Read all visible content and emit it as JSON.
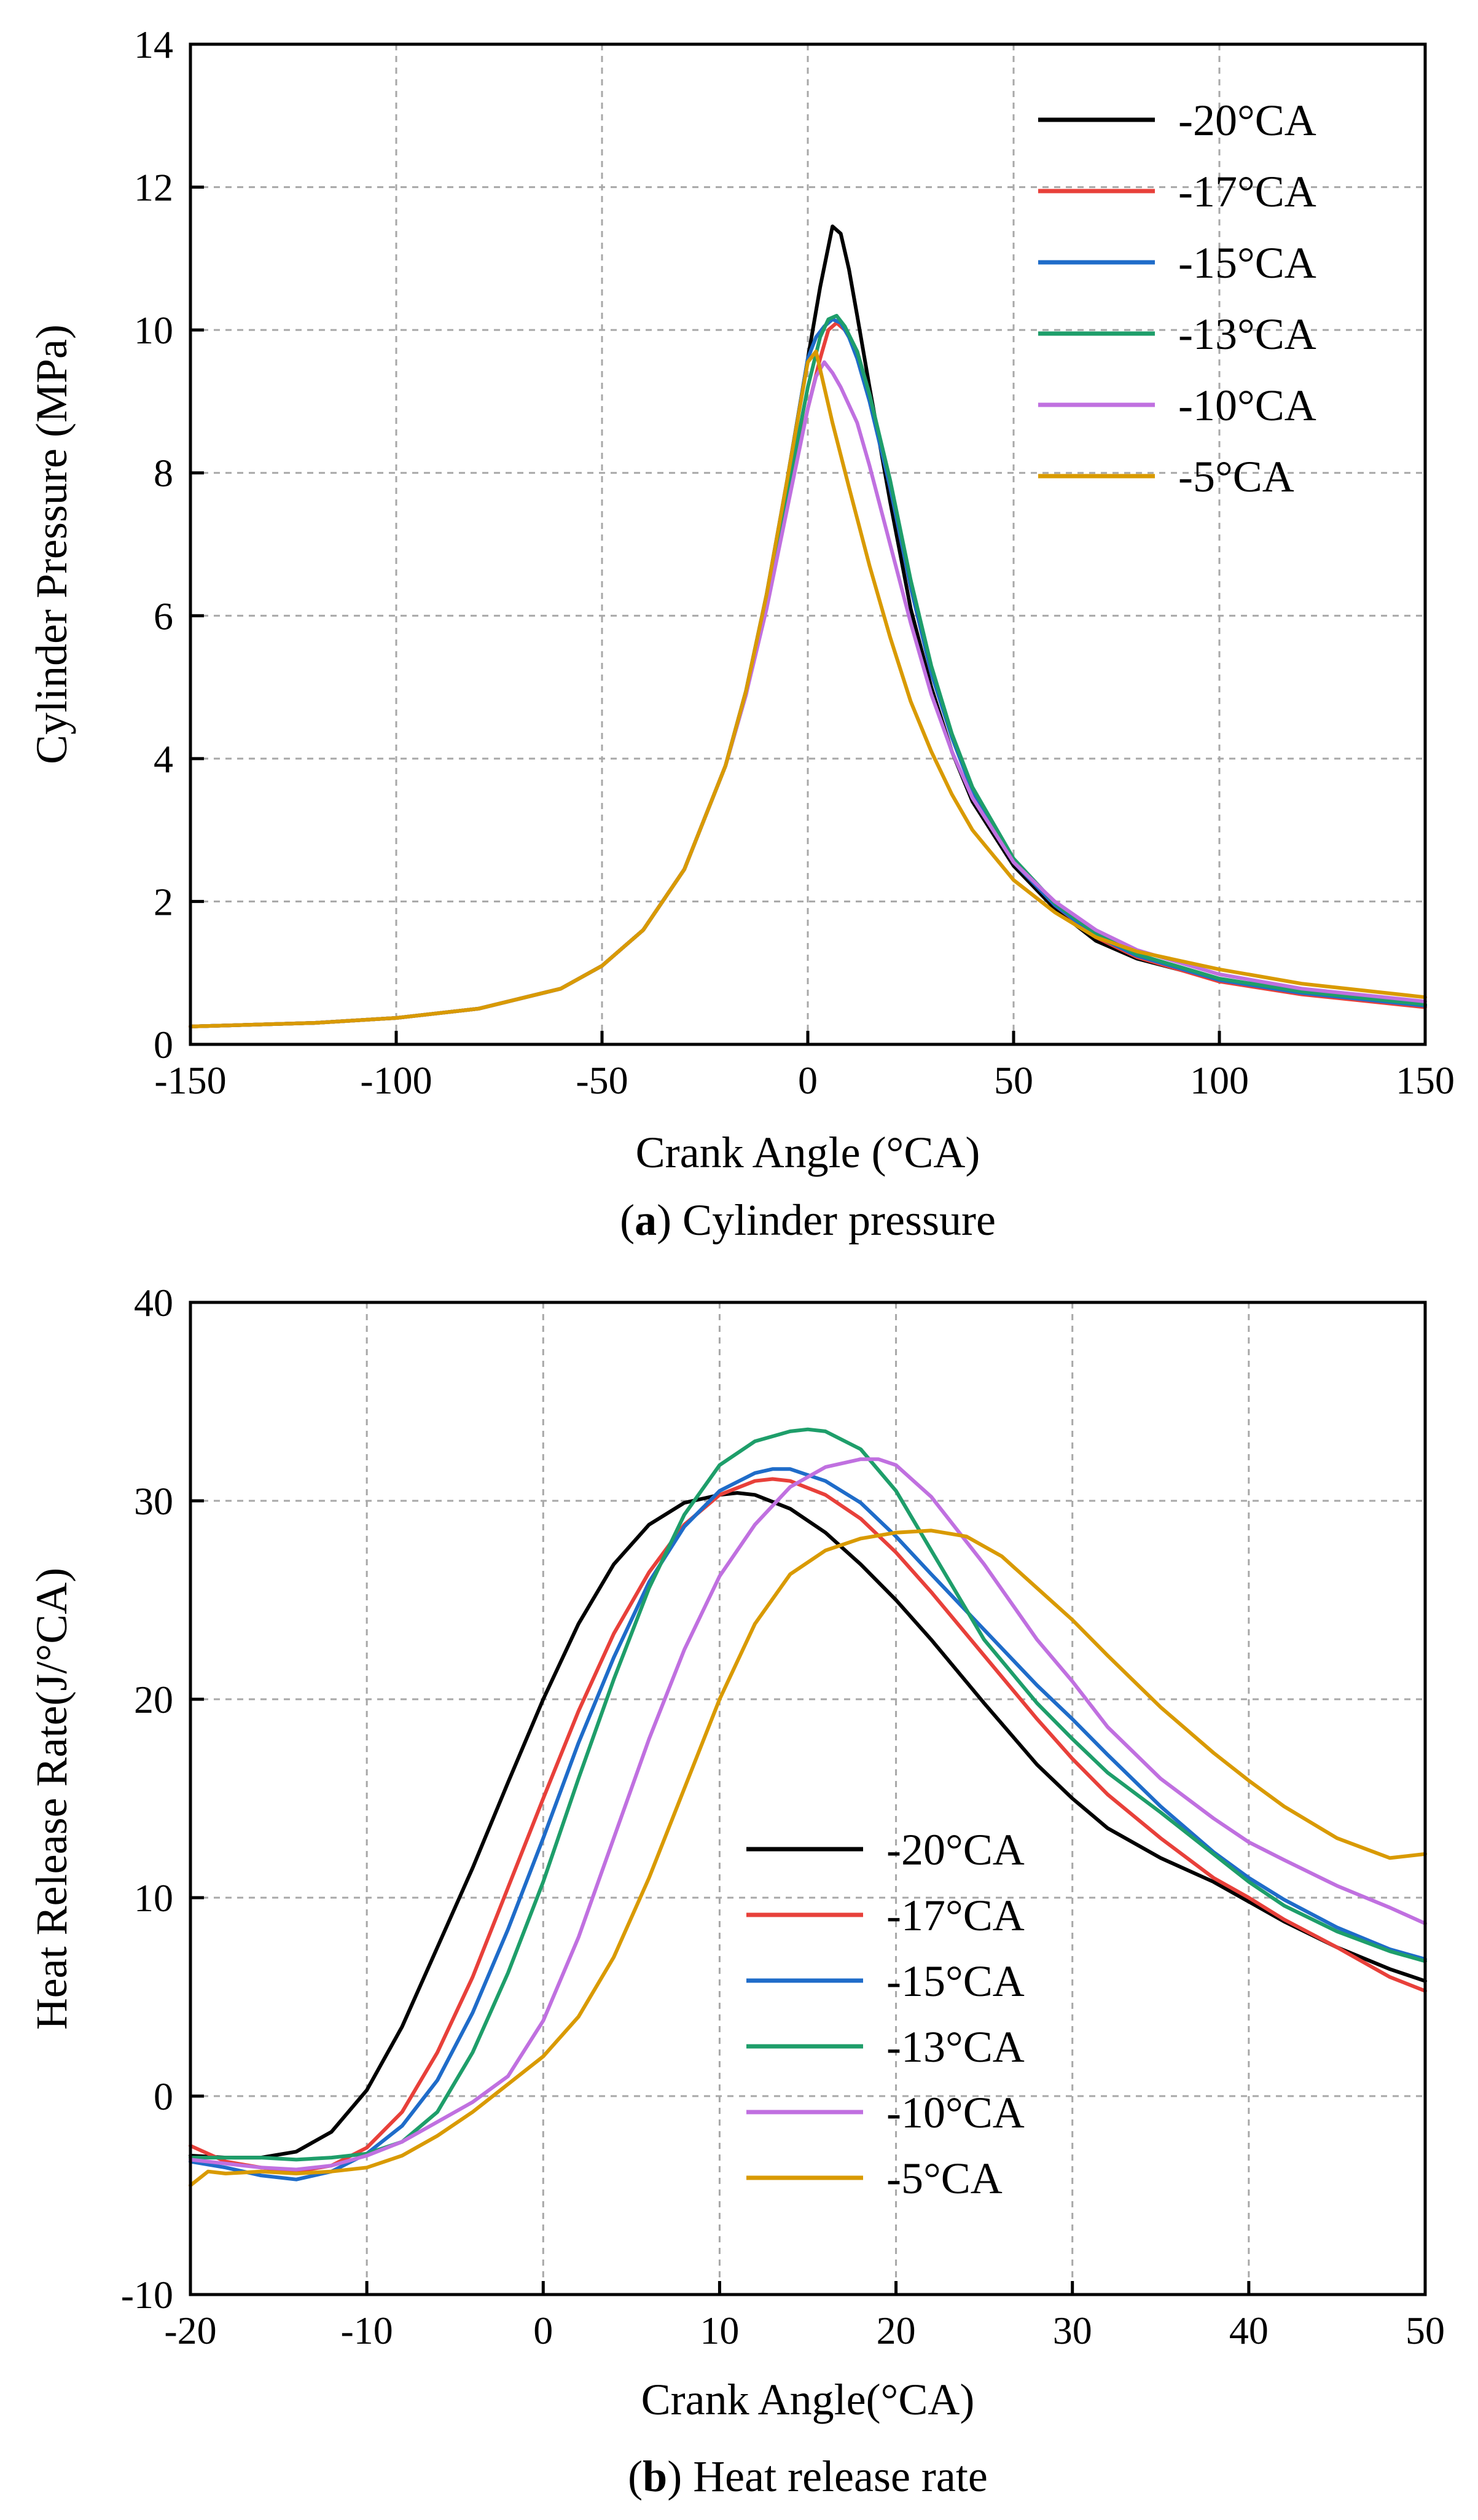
{
  "chart_data": [
    {
      "type": "line",
      "title": "",
      "xlabel": "Crank Angle (°CA)",
      "ylabel": "Cylinder Pressure (MPa)",
      "caption": {
        "letter": "a",
        "text": "Cylinder pressure"
      },
      "xlim": [
        -150,
        150
      ],
      "ylim": [
        0,
        14
      ],
      "xticks": [
        -150,
        -100,
        -50,
        0,
        50,
        100,
        150
      ],
      "yticks": [
        0,
        2,
        4,
        6,
        8,
        10,
        12,
        14
      ],
      "grid": true,
      "legend_position": "top-right",
      "series": [
        {
          "name": "-20°CA",
          "color": "#000000",
          "x": [
            -150,
            -120,
            -100,
            -80,
            -60,
            -50,
            -40,
            -30,
            -20,
            -15,
            -10,
            -5,
            0,
            3,
            6,
            8,
            10,
            12,
            15,
            20,
            25,
            30,
            35,
            40,
            50,
            60,
            70,
            80,
            100,
            120,
            150
          ],
          "y": [
            0.25,
            0.3,
            0.37,
            0.5,
            0.78,
            1.1,
            1.6,
            2.45,
            3.9,
            4.95,
            6.3,
            7.9,
            9.6,
            10.6,
            11.45,
            11.35,
            10.85,
            10.2,
            9.2,
            7.6,
            6.1,
            5.0,
            4.1,
            3.4,
            2.5,
            1.9,
            1.45,
            1.2,
            0.9,
            0.72,
            0.55
          ]
        },
        {
          "name": "-17°CA",
          "color": "#e8403a",
          "x": [
            -150,
            -120,
            -100,
            -80,
            -60,
            -50,
            -40,
            -30,
            -20,
            -15,
            -10,
            -5,
            0,
            3,
            5,
            7,
            9,
            12,
            15,
            20,
            25,
            30,
            35,
            40,
            50,
            60,
            70,
            80,
            100,
            120,
            150
          ],
          "y": [
            0.25,
            0.3,
            0.37,
            0.5,
            0.78,
            1.1,
            1.6,
            2.45,
            3.9,
            4.9,
            6.2,
            7.6,
            8.9,
            9.6,
            10.0,
            10.1,
            10.0,
            9.7,
            9.1,
            7.8,
            6.4,
            5.2,
            4.3,
            3.55,
            2.55,
            1.95,
            1.5,
            1.22,
            0.88,
            0.7,
            0.52
          ]
        },
        {
          "name": "-15°CA",
          "color": "#1f6cc9",
          "x": [
            -150,
            -120,
            -100,
            -80,
            -60,
            -50,
            -40,
            -30,
            -20,
            -15,
            -10,
            -5,
            0,
            2,
            4,
            6,
            8,
            10,
            12,
            15,
            20,
            25,
            30,
            35,
            40,
            50,
            60,
            70,
            80,
            100,
            120,
            150
          ],
          "y": [
            0.25,
            0.3,
            0.37,
            0.5,
            0.78,
            1.1,
            1.6,
            2.45,
            3.9,
            4.95,
            6.3,
            7.9,
            9.6,
            9.9,
            10.05,
            10.15,
            10.1,
            9.9,
            9.6,
            9.0,
            7.8,
            6.4,
            5.2,
            4.3,
            3.55,
            2.55,
            1.95,
            1.52,
            1.24,
            0.9,
            0.72,
            0.54
          ]
        },
        {
          "name": "-13°CA",
          "color": "#1e9e6a",
          "x": [
            -150,
            -120,
            -100,
            -80,
            -60,
            -50,
            -40,
            -30,
            -20,
            -15,
            -10,
            -5,
            0,
            3,
            5,
            7,
            9,
            12,
            15,
            20,
            25,
            30,
            35,
            40,
            50,
            60,
            70,
            80,
            100,
            120,
            150
          ],
          "y": [
            0.25,
            0.3,
            0.37,
            0.5,
            0.78,
            1.1,
            1.6,
            2.45,
            3.9,
            4.9,
            6.2,
            7.7,
            9.2,
            9.9,
            10.15,
            10.2,
            10.05,
            9.7,
            9.1,
            7.9,
            6.5,
            5.3,
            4.35,
            3.6,
            2.6,
            1.98,
            1.55,
            1.26,
            0.92,
            0.74,
            0.56
          ]
        },
        {
          "name": "-10°CA",
          "color": "#c070e0",
          "x": [
            -150,
            -120,
            -100,
            -80,
            -60,
            -50,
            -40,
            -30,
            -20,
            -15,
            -10,
            -5,
            0,
            2,
            4,
            6,
            8,
            12,
            15,
            20,
            25,
            30,
            35,
            40,
            50,
            60,
            70,
            80,
            100,
            120,
            150
          ],
          "y": [
            0.25,
            0.3,
            0.37,
            0.5,
            0.78,
            1.1,
            1.6,
            2.45,
            3.9,
            4.9,
            6.1,
            7.5,
            8.9,
            9.35,
            9.55,
            9.4,
            9.2,
            8.7,
            8.1,
            7.0,
            5.9,
            4.9,
            4.1,
            3.45,
            2.55,
            2.0,
            1.6,
            1.32,
            0.98,
            0.78,
            0.6
          ]
        },
        {
          "name": "-5°CA",
          "color": "#d99a00",
          "x": [
            -150,
            -120,
            -100,
            -80,
            -60,
            -50,
            -40,
            -30,
            -20,
            -15,
            -10,
            -5,
            -2,
            0,
            2,
            4,
            6,
            10,
            15,
            20,
            25,
            30,
            35,
            40,
            50,
            60,
            70,
            80,
            100,
            120,
            150
          ],
          "y": [
            0.25,
            0.3,
            0.37,
            0.5,
            0.78,
            1.1,
            1.6,
            2.45,
            3.9,
            4.95,
            6.3,
            7.9,
            8.9,
            9.55,
            9.7,
            9.2,
            8.7,
            7.8,
            6.7,
            5.7,
            4.8,
            4.1,
            3.5,
            3.0,
            2.3,
            1.85,
            1.5,
            1.3,
            1.05,
            0.85,
            0.66
          ]
        }
      ]
    },
    {
      "type": "line",
      "title": "",
      "xlabel": "Crank Angle(°CA)",
      "ylabel": "Heat Release Rate(J/°CA)",
      "caption": {
        "letter": "b",
        "text": "Heat release rate"
      },
      "xlim": [
        -20,
        50
      ],
      "ylim": [
        -10,
        40
      ],
      "xticks": [
        -20,
        -10,
        0,
        10,
        20,
        30,
        40,
        50
      ],
      "yticks": [
        -10,
        0,
        10,
        20,
        30,
        40
      ],
      "grid": true,
      "legend_position": "center",
      "series": [
        {
          "name": "-20°CA",
          "color": "#000000",
          "x": [
            -20,
            -18,
            -16,
            -14,
            -12,
            -10,
            -8,
            -6,
            -4,
            -2,
            0,
            2,
            4,
            6,
            8,
            10,
            11,
            12,
            14,
            16,
            18,
            20,
            22,
            25,
            28,
            30,
            32,
            35,
            38,
            40,
            42,
            45,
            48,
            50
          ],
          "y": [
            -3.0,
            -3.1,
            -3.1,
            -2.8,
            -1.8,
            0.3,
            3.5,
            7.5,
            11.5,
            15.8,
            20.0,
            23.8,
            26.8,
            28.8,
            29.9,
            30.3,
            30.4,
            30.3,
            29.6,
            28.4,
            26.8,
            25.0,
            23.0,
            19.8,
            16.7,
            15.0,
            13.5,
            12.0,
            10.8,
            9.8,
            8.8,
            7.5,
            6.4,
            5.8
          ]
        },
        {
          "name": "-17°CA",
          "color": "#e8403a",
          "x": [
            -20,
            -18,
            -16,
            -14,
            -12,
            -10,
            -8,
            -6,
            -4,
            -2,
            0,
            2,
            4,
            6,
            8,
            10,
            12,
            13,
            14,
            16,
            18,
            20,
            22,
            25,
            28,
            30,
            32,
            35,
            38,
            40,
            42,
            45,
            48,
            50
          ],
          "y": [
            -2.5,
            -3.3,
            -3.6,
            -3.8,
            -3.5,
            -2.6,
            -0.8,
            2.2,
            6.0,
            10.5,
            15.0,
            19.4,
            23.3,
            26.4,
            28.8,
            30.3,
            31.0,
            31.1,
            31.0,
            30.3,
            29.1,
            27.4,
            25.4,
            22.2,
            19.0,
            17.0,
            15.2,
            13.0,
            11.0,
            10.0,
            8.9,
            7.5,
            6.0,
            5.3
          ]
        },
        {
          "name": "-15°CA",
          "color": "#1f6cc9",
          "x": [
            -20,
            -18,
            -16,
            -14,
            -12,
            -10,
            -8,
            -6,
            -4,
            -2,
            0,
            2,
            4,
            6,
            8,
            10,
            12,
            13,
            14,
            16,
            18,
            20,
            22,
            25,
            28,
            30,
            32,
            35,
            38,
            40,
            42,
            45,
            48,
            50
          ],
          "y": [
            -3.3,
            -3.6,
            -4.0,
            -4.2,
            -3.8,
            -2.9,
            -1.5,
            0.8,
            4.2,
            8.4,
            13.0,
            17.8,
            22.1,
            25.9,
            28.7,
            30.5,
            31.4,
            31.6,
            31.6,
            31.0,
            29.9,
            28.2,
            26.3,
            23.5,
            20.7,
            19.0,
            17.2,
            14.6,
            12.3,
            11.0,
            9.9,
            8.5,
            7.4,
            6.9
          ]
        },
        {
          "name": "-13°CA",
          "color": "#1e9e6a",
          "x": [
            -20,
            -18,
            -16,
            -14,
            -12,
            -10,
            -8,
            -6,
            -4,
            -2,
            0,
            2,
            4,
            6,
            8,
            10,
            12,
            14,
            15,
            16,
            18,
            20,
            22,
            25,
            28,
            30,
            32,
            35,
            38,
            40,
            42,
            45,
            48,
            50
          ],
          "y": [
            -3.1,
            -3.1,
            -3.1,
            -3.2,
            -3.1,
            -2.9,
            -2.3,
            -0.8,
            2.2,
            6.2,
            10.8,
            16.0,
            21.0,
            25.6,
            29.3,
            31.8,
            33.0,
            33.5,
            33.6,
            33.5,
            32.6,
            30.5,
            27.5,
            23.0,
            19.8,
            18.0,
            16.3,
            14.3,
            12.2,
            10.8,
            9.6,
            8.3,
            7.3,
            6.8
          ]
        },
        {
          "name": "-10°CA",
          "color": "#c070e0",
          "x": [
            -20,
            -18,
            -16,
            -14,
            -12,
            -10,
            -8,
            -6,
            -4,
            -2,
            0,
            2,
            4,
            6,
            8,
            10,
            12,
            14,
            16,
            18,
            19,
            20,
            22,
            25,
            28,
            30,
            32,
            35,
            38,
            40,
            42,
            45,
            48,
            50
          ],
          "y": [
            -3.2,
            -3.4,
            -3.6,
            -3.7,
            -3.5,
            -3.0,
            -2.3,
            -1.3,
            -0.3,
            1.0,
            3.8,
            8.0,
            13.0,
            18.0,
            22.5,
            26.2,
            28.8,
            30.7,
            31.7,
            32.1,
            32.1,
            31.8,
            30.2,
            26.8,
            23.0,
            20.9,
            18.6,
            16.0,
            14.0,
            12.8,
            11.9,
            10.6,
            9.5,
            8.7
          ]
        },
        {
          "name": "-5°CA",
          "color": "#d99a00",
          "x": [
            -20,
            -19,
            -18,
            -16,
            -14,
            -12,
            -10,
            -8,
            -6,
            -4,
            -2,
            0,
            2,
            4,
            6,
            8,
            10,
            12,
            14,
            16,
            18,
            20,
            22,
            24,
            26,
            28,
            30,
            32,
            35,
            38,
            40,
            42,
            45,
            48,
            50
          ],
          "y": [
            -4.5,
            -3.8,
            -3.9,
            -3.8,
            -3.9,
            -3.8,
            -3.6,
            -3.0,
            -2.0,
            -0.8,
            0.6,
            2.0,
            4.0,
            7.0,
            11.0,
            15.5,
            20.0,
            23.8,
            26.3,
            27.5,
            28.1,
            28.4,
            28.5,
            28.2,
            27.2,
            25.6,
            24.0,
            22.2,
            19.6,
            17.3,
            15.9,
            14.6,
            13.0,
            12.0,
            12.2
          ]
        }
      ]
    }
  ]
}
